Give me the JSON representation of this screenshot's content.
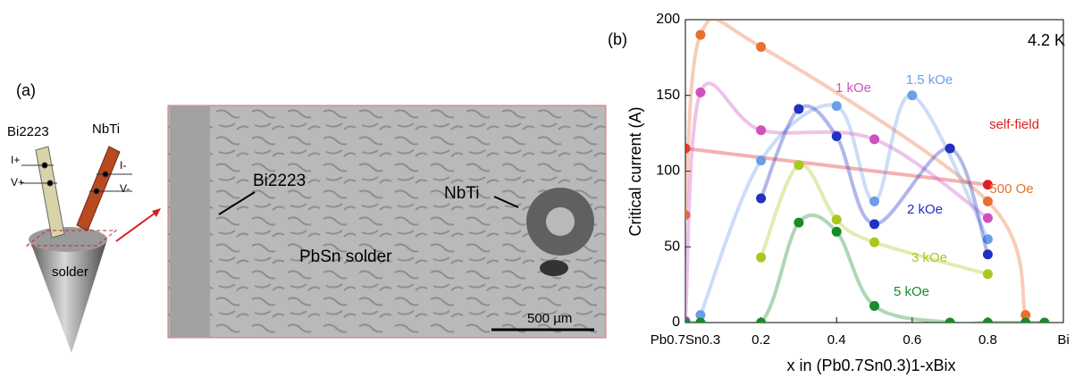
{
  "panel_a": {
    "label": "(a)",
    "rod_left": "Bi2223",
    "rod_right": "NbTi",
    "lead_left_top": "I+",
    "lead_left_bottom": "V+",
    "lead_right_top": "I-",
    "lead_right_bottom": "V-",
    "solder": "solder",
    "micrograph": {
      "label_left": "Bi2223",
      "label_right": "NbTi",
      "label_center": "PbSn solder",
      "scale_bar": "500 µm"
    }
  },
  "chart_data": {
    "type": "scatter",
    "panel_label": "(b)",
    "annotation": "4.2 K",
    "x_label": "x in (Pb0.7Sn0.3)1-xBix",
    "y_label": "Critical current (A)",
    "xlim": [
      0,
      1
    ],
    "ylim": [
      0,
      200
    ],
    "xticks": [
      {
        "value": 0,
        "label": "Pb0.7Sn0.3"
      },
      0.2,
      0.4,
      0.6,
      0.8,
      {
        "value": 1,
        "label": "Bi"
      }
    ],
    "yticks": [
      0,
      50,
      100,
      150,
      200
    ],
    "series": [
      {
        "name": "self-field",
        "color": "#e02020",
        "x": [
          0,
          0.8
        ],
        "values": [
          115,
          91
        ]
      },
      {
        "name": "500 Oe",
        "color": "#e87030",
        "x": [
          0,
          0.04,
          0.2,
          0.8,
          0.9
        ],
        "values": [
          71,
          190,
          182,
          80,
          5
        ]
      },
      {
        "name": "1 kOe",
        "color": "#d050c0",
        "x": [
          0,
          0.04,
          0.2,
          0.5,
          0.8
        ],
        "values": [
          1,
          152,
          127,
          121,
          69
        ]
      },
      {
        "name": "1.5 kOe",
        "color": "#6a9ee8",
        "x": [
          0.04,
          0.2,
          0.4,
          0.5,
          0.6,
          0.8
        ],
        "values": [
          5,
          107,
          143,
          80,
          150,
          55
        ]
      },
      {
        "name": "2 kOe",
        "color": "#2030c0",
        "x": [
          0.2,
          0.3,
          0.4,
          0.5,
          0.7,
          0.8
        ],
        "values": [
          82,
          141,
          123,
          65,
          115,
          45
        ]
      },
      {
        "name": "3 kOe",
        "color": "#a8c820",
        "x": [
          0.2,
          0.3,
          0.4,
          0.5,
          0.8
        ],
        "values": [
          43,
          104,
          68,
          53,
          32
        ]
      },
      {
        "name": "5 kOe",
        "color": "#1a8a2a",
        "x": [
          0,
          0.04,
          0.2,
          0.3,
          0.4,
          0.5,
          0.7,
          0.8,
          0.9,
          0.95
        ],
        "values": [
          0,
          0,
          0,
          66,
          60,
          11,
          0,
          0,
          0,
          0
        ]
      }
    ]
  }
}
